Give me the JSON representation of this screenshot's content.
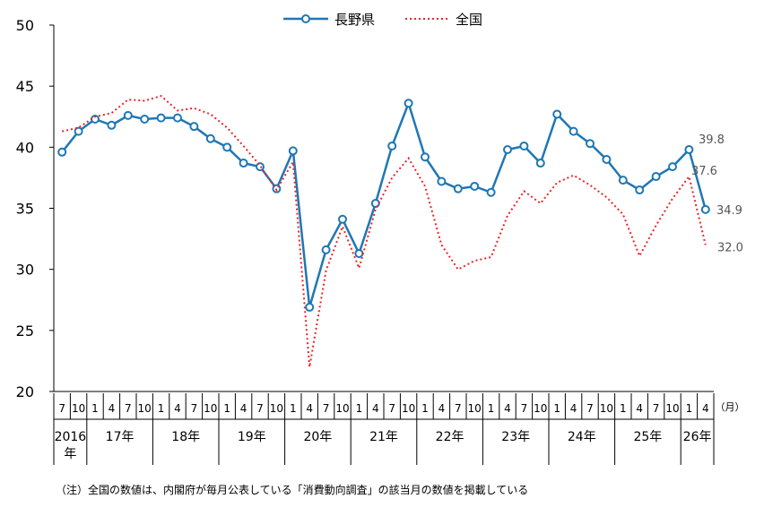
{
  "chart_data": {
    "type": "line",
    "title": "",
    "xlabel": "",
    "ylabel": "",
    "ylim": [
      20,
      50
    ],
    "yticks": [
      20,
      25,
      30,
      35,
      40,
      45,
      50
    ],
    "grid": false,
    "legend": "top-center",
    "unit_label": "（月）",
    "months": [
      "7",
      "10",
      "1",
      "4",
      "7",
      "10",
      "1",
      "4",
      "7",
      "10",
      "1",
      "4",
      "7",
      "10",
      "1",
      "4",
      "7",
      "10",
      "1",
      "4",
      "7",
      "10",
      "1",
      "4",
      "7",
      "10",
      "1",
      "4",
      "7",
      "10",
      "1",
      "4",
      "7",
      "10",
      "1",
      "4",
      "7",
      "10",
      "1",
      "4"
    ],
    "years": [
      {
        "label": "2016\n年",
        "count": 2
      },
      {
        "label": "17年",
        "count": 4
      },
      {
        "label": "18年",
        "count": 4
      },
      {
        "label": "19年",
        "count": 4
      },
      {
        "label": "20年",
        "count": 4
      },
      {
        "label": "21年",
        "count": 4
      },
      {
        "label": "22年",
        "count": 4
      },
      {
        "label": "23年",
        "count": 4
      },
      {
        "label": "24年",
        "count": 4
      },
      {
        "label": "25年",
        "count": 4
      },
      {
        "label": "26年",
        "count": 2
      }
    ],
    "series": [
      {
        "name": "長野県",
        "color": "#1f77b4",
        "style": "solid-marker",
        "values": [
          39.6,
          41.3,
          42.3,
          41.8,
          42.6,
          42.3,
          42.4,
          42.4,
          41.7,
          40.7,
          40.0,
          38.7,
          38.4,
          36.6,
          39.7,
          26.9,
          31.6,
          34.1,
          31.3,
          35.4,
          40.1,
          43.6,
          39.2,
          37.2,
          36.6,
          36.8,
          36.3,
          39.8,
          40.1,
          38.7,
          42.7,
          41.3,
          40.3,
          39.0,
          37.3,
          36.5,
          37.6,
          38.4,
          39.8,
          34.9
        ],
        "end_labels": [
          "39.8",
          "34.9"
        ]
      },
      {
        "name": "全国",
        "color": "#e8262a",
        "style": "dotted",
        "values": [
          41.3,
          41.6,
          42.5,
          42.8,
          43.9,
          43.8,
          44.2,
          43.0,
          43.2,
          42.7,
          41.6,
          40.1,
          38.5,
          36.5,
          38.8,
          22.0,
          29.9,
          33.5,
          30.1,
          34.9,
          37.5,
          39.1,
          36.8,
          32.0,
          30.0,
          30.7,
          31.0,
          34.4,
          36.4,
          35.4,
          37.1,
          37.7,
          36.9,
          35.9,
          34.5,
          31.1,
          33.6,
          35.8,
          37.6,
          32.0
        ],
        "end_labels": [
          "37.6",
          "32.0"
        ]
      }
    ]
  },
  "note": "（注）全国の数値は、内閣府が毎月公表している「消費動向調査」の該当月の数値を掲載している"
}
